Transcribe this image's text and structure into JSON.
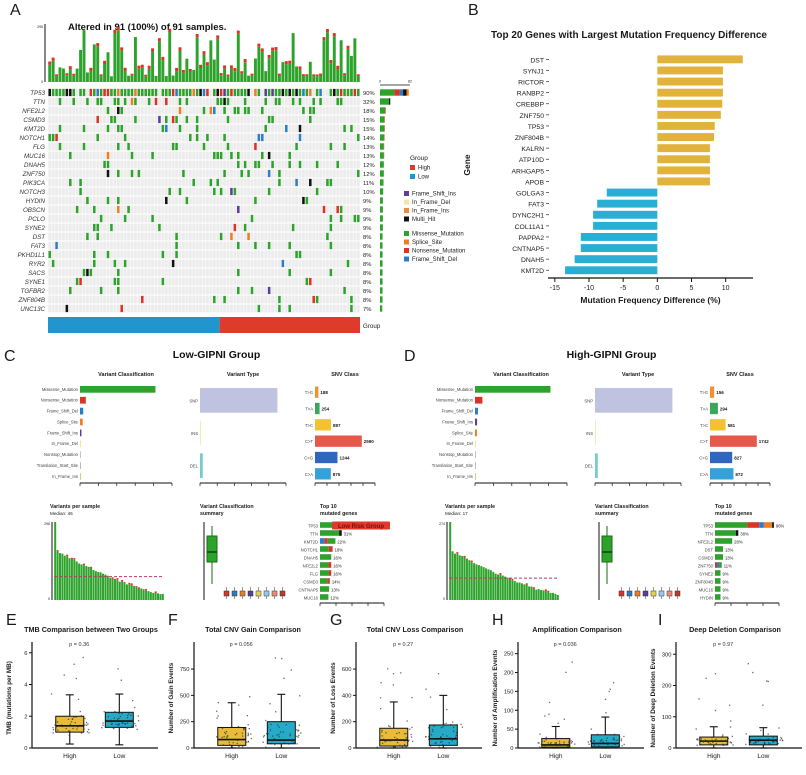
{
  "chart_data": [
    {
      "id": "A",
      "type": "oncoplot",
      "letter": "A",
      "title": "Altered in 91 (100%) of 91 samples.",
      "n_samples": 91,
      "genes": [
        [
          "TP53",
          90
        ],
        [
          "TTN",
          32
        ],
        [
          "NFE2L2",
          18
        ],
        [
          "CSMD3",
          15
        ],
        [
          "KMT2D",
          15
        ],
        [
          "NOTCH1",
          14
        ],
        [
          "FLG",
          13
        ],
        [
          "MUC16",
          13
        ],
        [
          "DNAH5",
          12
        ],
        [
          "ZNF750",
          12
        ],
        [
          "PIK3CA",
          11
        ],
        [
          "NOTCH3",
          10
        ],
        [
          "HYDIN",
          9
        ],
        [
          "OBSCN",
          9
        ],
        [
          "PCLO",
          9
        ],
        [
          "SYNE2",
          9
        ],
        [
          "DST",
          8
        ],
        [
          "FAT3",
          8
        ],
        [
          "PKHD1L1",
          8
        ],
        [
          "RYR2",
          8
        ],
        [
          "SACS",
          8
        ],
        [
          "SYNE1",
          8
        ],
        [
          "TGFBR2",
          8
        ],
        [
          "ZNF804B",
          8
        ],
        [
          "UNC13C",
          7
        ]
      ],
      "right_axis": {
        "min_label": "0",
        "max_label": "82"
      },
      "top_axis": {
        "min_label": "0",
        "max_label": "295"
      },
      "mut_colors": {
        "green": "#2EA32C",
        "red": "#DD3226",
        "blue": "#2D7DC6",
        "orange": "#EE7E24",
        "purple": "#5A3E98",
        "black": "#111111",
        "paleyellow": "#F2E6A0"
      },
      "group_bar": {
        "label": "Group",
        "low_frac": 0.55,
        "low_color": "#2196CE",
        "high_color": "#DF3B2C"
      },
      "legend": {
        "group_title": "Group",
        "groups": [
          {
            "label": "High",
            "color": "#DF3B2C"
          },
          {
            "label": "Low",
            "color": "#2196CE"
          }
        ],
        "mutations": [
          {
            "label": "Frame_Shift_Ins",
            "color": "#5A3E98"
          },
          {
            "label": "In_Frame_Del",
            "color": "#F2E6A0"
          },
          {
            "label": "In_Frame_Ins",
            "color": "#ED8A3C"
          },
          {
            "label": "Multi_Hit",
            "color": "#111111"
          },
          {
            "label": "Missense_Mutation",
            "color": "#2EA32C"
          },
          {
            "label": "Splice_Site",
            "color": "#EE7E24"
          },
          {
            "label": "Nonsense_Mutation",
            "color": "#DD3226"
          },
          {
            "label": "Frame_Shift_Del",
            "color": "#2D7DC6"
          }
        ]
      }
    },
    {
      "id": "B",
      "type": "bar",
      "letter": "B",
      "title": "Top 20 Genes with Largest Mutation Frequency Difference",
      "xlabel": "Mutation Frequency Difference (%)",
      "ylabel": "Gene",
      "categories": [
        "DST",
        "SYNJ1",
        "RICTOR",
        "RANBP2",
        "CREBBP",
        "ZNF750",
        "TP53",
        "ZNF804B",
        "KALRN",
        "ATP10D",
        "ARHGAP5",
        "APOB",
        "GOLGA3",
        "FAT3",
        "DYNC2H1",
        "COL11A1",
        "PAPPA2",
        "CNTNAP5",
        "DNAH5",
        "KMT2D"
      ],
      "values": [
        12.5,
        9.6,
        9.6,
        9.6,
        9.5,
        9.3,
        8.4,
        8.3,
        7.7,
        7.7,
        7.7,
        7.7,
        -7.4,
        -8.8,
        -9.4,
        -9.4,
        -11.2,
        -11.2,
        -12.1,
        -13.5
      ],
      "xticks": [
        -15,
        -10,
        -5,
        0,
        5,
        10
      ],
      "xlim": [
        -16,
        14
      ],
      "pos_color": "#E2B33C",
      "neg_color": "#29AFD4"
    },
    {
      "id": "C",
      "type": "maf_summary",
      "letter": "C",
      "title": "Low-GIPNI Group",
      "variant_classification": {
        "title": "Variant Classification",
        "labels": [
          "Missense_Mutation",
          "Nonsense_Mutation",
          "Frame_Shift_Del",
          "Splice_Site",
          "Frame_Shift_Ins",
          "In_Frame_Del",
          "Nonstop_Mutation",
          "Translation_Start_Site",
          "In_Frame_Ins"
        ],
        "values": [
          4900,
          380,
          210,
          175,
          95,
          28,
          10,
          7,
          4
        ],
        "colors": [
          "#2EA32C",
          "#DD3226",
          "#2D7DC6",
          "#EE7E24",
          "#5A3E98",
          "#E8D44C",
          "#9AA0A6",
          "#8C8C8C",
          "#C9A227"
        ]
      },
      "variant_type": {
        "title": "Variant Type",
        "labels": [
          "SNP",
          "INS",
          "DEL"
        ],
        "values": [
          5900,
          45,
          210
        ],
        "colors": [
          "#BFC3DF",
          "#F2ECB4",
          "#74CDC8"
        ]
      },
      "snv_class": {
        "title": "SNV Class",
        "labels": [
          "T>G",
          "T>A",
          "T>C",
          "C>T",
          "C>G",
          "C>A"
        ],
        "values": [
          188,
          254,
          887,
          2590,
          1244,
          875
        ],
        "colors": [
          "#F0932F",
          "#3BA558",
          "#F2C231",
          "#E8584A",
          "#3166BE",
          "#35A1D9"
        ]
      },
      "variants_per_sample": {
        "title": "Variants per sample",
        "median_label": "Median: 46",
        "max_label": "296",
        "dash_frac": 0.3
      },
      "classification_summary": {
        "title_line1": "Variant Classification",
        "title_line2": "summary",
        "box_colors": [
          "#DD3226",
          "#2D7DC6",
          "#EE7E24",
          "#5A3E98",
          "#E8D44C",
          "#8FD0E8",
          "#EE8E7A",
          "#C0392B"
        ]
      },
      "top10": {
        "title_line1": "Top 10",
        "title_line2": "mutated genes",
        "banner": "Low Risk Group",
        "banner_color": "#E2392B",
        "banner_text_color": "#7A0F0F",
        "genes": [
          {
            "name": "TP53",
            "pct": 84,
            "segments": [
              [
                "#2EA32C",
                0.5
              ],
              [
                "#DD3226",
                0.2
              ],
              [
                "#2D7DC6",
                0.12
              ],
              [
                "#EE7E24",
                0.14
              ],
              [
                "#111111",
                0.04
              ]
            ]
          },
          {
            "name": "TTN",
            "pct": 31,
            "segments": [
              [
                "#2EA32C",
                0.88
              ],
              [
                "#111111",
                0.12
              ]
            ]
          },
          {
            "name": "KMT2D",
            "pct": 22,
            "segments": [
              [
                "#2D7DC6",
                0.3
              ],
              [
                "#DD3226",
                0.2
              ],
              [
                "#2EA32C",
                0.5
              ]
            ]
          },
          {
            "name": "NOTCH1",
            "pct": 18,
            "segments": [
              [
                "#2EA32C",
                0.7
              ],
              [
                "#DD3226",
                0.3
              ]
            ]
          },
          {
            "name": "DNAH5",
            "pct": 16
          },
          {
            "name": "NFE2L2",
            "pct": 16,
            "segments": [
              [
                "#2EA32C",
                0.75
              ],
              [
                "#DD3226",
                0.25
              ]
            ]
          },
          {
            "name": "FLG",
            "pct": 16,
            "segments": [
              [
                "#2EA32C",
                0.8
              ],
              [
                "#DD3226",
                0.2
              ]
            ]
          },
          {
            "name": "CSMD3",
            "pct": 14,
            "segments": [
              [
                "#2EA32C",
                0.75
              ],
              [
                "#DD3226",
                0.25
              ]
            ]
          },
          {
            "name": "CNTNAP5",
            "pct": 13
          },
          {
            "name": "MUC16",
            "pct": 12
          }
        ]
      }
    },
    {
      "id": "D",
      "type": "maf_summary",
      "letter": "D",
      "title": "High-GIPNI Group",
      "variant_classification": {
        "title": "Variant Classification",
        "labels": [
          "Missense_Mutation",
          "Nonsense_Mutation",
          "Frame_Shift_Del",
          "Frame_Shift_Ins",
          "Splice_Site",
          "In_Frame_Del",
          "Nonstop_Mutation",
          "Translation_Start_Site",
          "In_Frame_Ins"
        ],
        "values": [
          3050,
          300,
          120,
          85,
          80,
          20,
          7,
          5,
          3
        ],
        "colors": [
          "#2EA32C",
          "#DD3226",
          "#2D7DC6",
          "#5A3E98",
          "#EE7E24",
          "#E8D44C",
          "#9AA0A6",
          "#8C8C8C",
          "#C9A227"
        ]
      },
      "variant_type": {
        "title": "Variant Type",
        "labels": [
          "SNP",
          "INS",
          "DEL"
        ],
        "values": [
          3650,
          25,
          130
        ],
        "colors": [
          "#BFC3DF",
          "#F2ECB4",
          "#74CDC8"
        ]
      },
      "snv_class": {
        "title": "SNV Class",
        "labels": [
          "T>G",
          "T>A",
          "T>C",
          "C>T",
          "C>G",
          "C>A"
        ],
        "values": [
          156,
          294,
          581,
          1742,
          827,
          872
        ],
        "colors": [
          "#F0932F",
          "#3BA558",
          "#F2C231",
          "#E8584A",
          "#3166BE",
          "#35A1D9"
        ]
      },
      "variants_per_sample": {
        "title": "Variants per sample",
        "median_label": "Median: 17",
        "max_label": "274",
        "dash_frac": 0.28
      },
      "classification_summary": {
        "title_line1": "Variant Classification",
        "title_line2": "summary",
        "box_colors": [
          "#DD3226",
          "#2D7DC6",
          "#EE7E24",
          "#5A3E98",
          "#E8D44C",
          "#8FD0E8",
          "#EE8E7A",
          "#C0392B"
        ]
      },
      "top10": {
        "title_line1": "Top 10",
        "title_line2": "mutated genes",
        "genes": [
          {
            "name": "TP53",
            "pct": 96,
            "segments": [
              [
                "#2EA32C",
                0.55
              ],
              [
                "#DD3226",
                0.2
              ],
              [
                "#2D7DC6",
                0.08
              ],
              [
                "#EE7E24",
                0.14
              ],
              [
                "#111111",
                0.03
              ]
            ]
          },
          {
            "name": "TTN",
            "pct": 38,
            "segments": [
              [
                "#2EA32C",
                0.9
              ],
              [
                "#111111",
                0.1
              ]
            ]
          },
          {
            "name": "NFE2L2",
            "pct": 28
          },
          {
            "name": "DST",
            "pct": 13
          },
          {
            "name": "CSMD3",
            "pct": 13
          },
          {
            "name": "ZNF750",
            "pct": 11,
            "segments": [
              [
                "#DD3226",
                0.3
              ],
              [
                "#2D7DC6",
                0.3
              ],
              [
                "#2EA32C",
                0.4
              ]
            ]
          },
          {
            "name": "SYNE2",
            "pct": 9
          },
          {
            "name": "ZNF804B",
            "pct": 9
          },
          {
            "name": "MUC16",
            "pct": 9
          },
          {
            "name": "HYDIN",
            "pct": 9
          }
        ]
      }
    },
    {
      "id": "E",
      "type": "boxplot",
      "letter": "E",
      "title": "TMB Comparison between Two Groups",
      "p_label": "p = 0.36",
      "ylabel": "TMB (mutations per MB)",
      "yticks": [
        0,
        2,
        4,
        6
      ],
      "ymax": 6.3,
      "pts_max": 5.9,
      "groups": [
        {
          "label": "High",
          "color": "#E8BC3A",
          "stats": [
            0.25,
            1.0,
            1.4,
            2.0,
            3.35
          ]
        },
        {
          "label": "Low",
          "color": "#25ABC8",
          "stats": [
            0.2,
            1.3,
            1.7,
            2.25,
            3.4
          ]
        }
      ]
    },
    {
      "id": "F",
      "type": "boxplot",
      "letter": "F",
      "title": "Total CNV Gain Comparison",
      "p_label": "p = 0.056",
      "ylabel": "Number of Gain Events",
      "yticks": [
        0,
        250,
        500,
        750
      ],
      "ymax": 950,
      "pts_max": 900,
      "groups": [
        {
          "label": "High",
          "color": "#E8BC3A",
          "stats": [
            0,
            25,
            80,
            195,
            430
          ]
        },
        {
          "label": "Low",
          "color": "#25ABC8",
          "stats": [
            0,
            40,
            75,
            250,
            510
          ]
        }
      ]
    },
    {
      "id": "G",
      "type": "boxplot",
      "letter": "G",
      "title": "Total CNV Loss Comparison",
      "p_label": "p = 0.27",
      "ylabel": "Number of Loss Events",
      "yticks": [
        0,
        200,
        400,
        600
      ],
      "ymax": 760,
      "pts_max": 700,
      "groups": [
        {
          "label": "High",
          "color": "#E8BC3A",
          "stats": [
            0,
            15,
            60,
            150,
            350
          ]
        },
        {
          "label": "Low",
          "color": "#25ABC8",
          "stats": [
            0,
            20,
            70,
            175,
            400
          ]
        }
      ]
    },
    {
      "id": "H",
      "type": "boxplot",
      "letter": "H",
      "title": "Amplification Comparison",
      "p_label": "p = 0.036",
      "ylabel": "Number of Amplification Events",
      "yticks": [
        0,
        50,
        100,
        150,
        200,
        250
      ],
      "ymax": 265,
      "pts_max": 245,
      "groups": [
        {
          "label": "High",
          "color": "#E8BC3A",
          "stats": [
            0,
            2,
            8,
            25,
            57
          ]
        },
        {
          "label": "Low",
          "color": "#25ABC8",
          "stats": [
            0,
            3,
            12,
            35,
            82
          ]
        }
      ]
    },
    {
      "id": "I",
      "type": "boxplot",
      "letter": "I",
      "title": "Deep Deletion Comparison",
      "p_label": "p = 0.97",
      "ylabel": "Number of Deep Deletion Events",
      "yticks": [
        0,
        100,
        200,
        300
      ],
      "ymax": 320,
      "pts_max": 305,
      "groups": [
        {
          "label": "High",
          "color": "#E8BC3A",
          "stats": [
            0,
            10,
            22,
            35,
            68
          ]
        },
        {
          "label": "Low",
          "color": "#25ABC8",
          "stats": [
            0,
            10,
            25,
            38,
            65
          ]
        }
      ]
    }
  ]
}
